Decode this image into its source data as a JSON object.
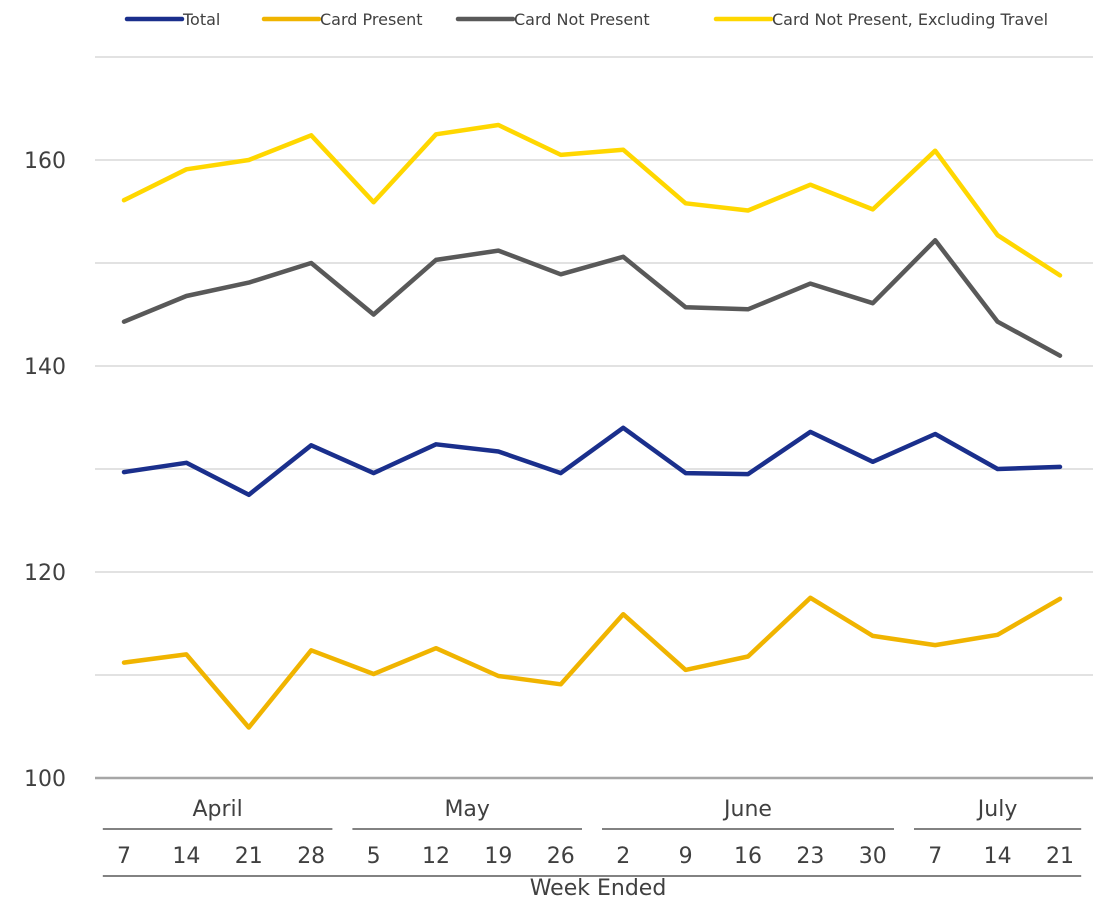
{
  "chart_data": {
    "type": "line",
    "xlabel": "Week Ended",
    "ylabel": "",
    "ylim": [
      100,
      170
    ],
    "yticks": [
      100,
      120,
      140,
      160
    ],
    "grid": true,
    "legend_position": "top",
    "months": [
      {
        "label": "April",
        "first": 0,
        "last": 3
      },
      {
        "label": "May",
        "first": 4,
        "last": 7
      },
      {
        "label": "June",
        "first": 8,
        "last": 12
      },
      {
        "label": "July",
        "first": 13,
        "last": 15
      }
    ],
    "categories": [
      "7",
      "14",
      "21",
      "28",
      "5",
      "12",
      "19",
      "26",
      "2",
      "9",
      "16",
      "23",
      "30",
      "7",
      "14",
      "21"
    ],
    "series": [
      {
        "name": "Total",
        "color": "#1a2f8c",
        "values": [
          129.7,
          130.6,
          127.5,
          132.3,
          129.6,
          132.4,
          131.7,
          129.6,
          134.0,
          129.6,
          129.5,
          133.6,
          130.7,
          133.4,
          130.0,
          130.2
        ]
      },
      {
        "name": "Card Present",
        "color": "#f0b400",
        "values": [
          111.2,
          112.0,
          104.9,
          112.4,
          110.1,
          112.6,
          109.9,
          109.1,
          115.9,
          110.5,
          111.8,
          117.5,
          113.8,
          112.9,
          113.9,
          117.4
        ]
      },
      {
        "name": "Card Not Present",
        "color": "#595959",
        "values": [
          144.3,
          146.8,
          148.1,
          150.0,
          145.0,
          150.3,
          151.2,
          148.9,
          150.6,
          145.7,
          145.5,
          148.0,
          146.1,
          152.2,
          144.3,
          141.0
        ]
      },
      {
        "name": "Card Not Present, Excluding Travel",
        "color": "#ffd700",
        "values": [
          156.1,
          159.1,
          160.0,
          162.4,
          155.9,
          162.5,
          163.4,
          160.5,
          161.0,
          155.8,
          155.1,
          157.6,
          155.2,
          160.9,
          152.7,
          148.8
        ]
      }
    ]
  }
}
